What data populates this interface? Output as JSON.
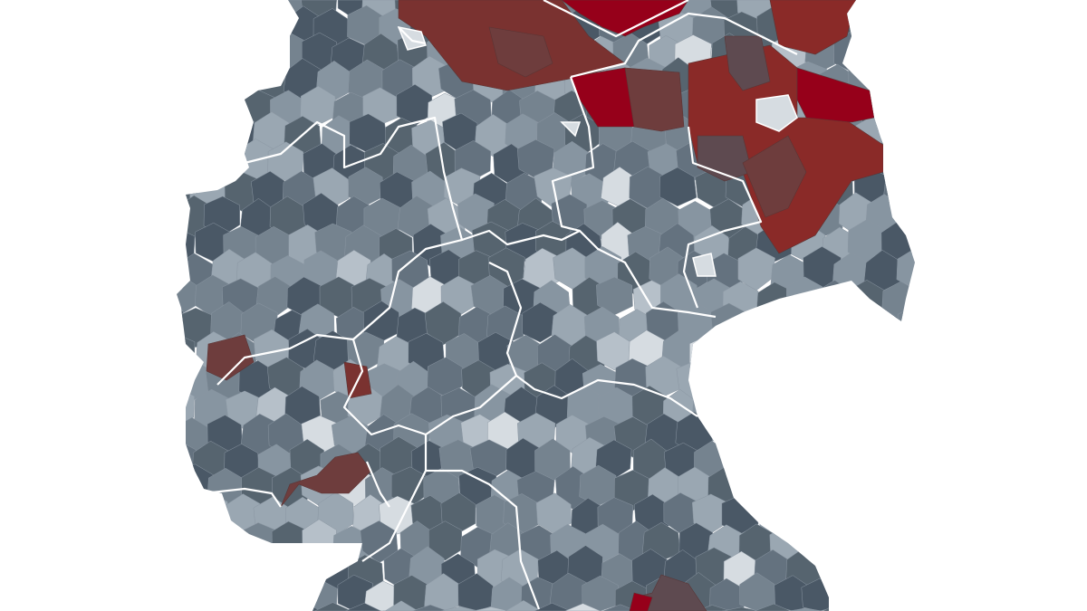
{
  "map": {
    "country": "Germany",
    "level": "districts",
    "background": "#ffffff",
    "border_color": "#ffffff",
    "scale_grey": [
      "#4a5866",
      "#56646f",
      "#64727f",
      "#75838f",
      "#8795a1",
      "#9aa7b2",
      "#b6c0c9",
      "#d6dce1"
    ],
    "scale_red": [
      "#5e4a50",
      "#6e3d3d",
      "#7a3230",
      "#8a2a28",
      "#96001a"
    ]
  }
}
